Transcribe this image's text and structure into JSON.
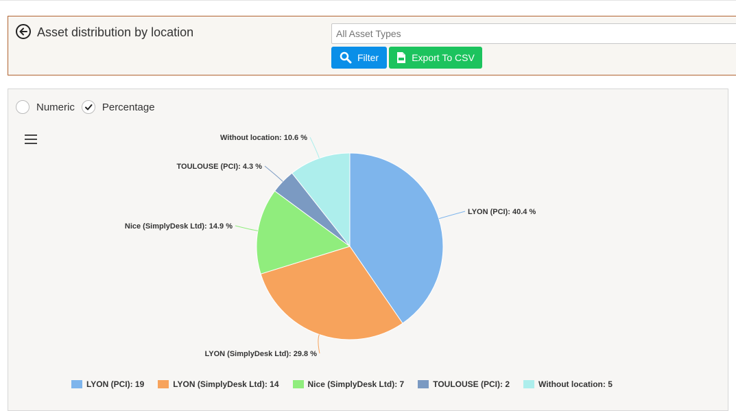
{
  "header": {
    "title": "Asset distribution by location",
    "asset_type_placeholder": "All Asset Types",
    "filter_label": "Filter",
    "export_label": "Export To CSV",
    "back_icon": "arrow-left-circle-icon",
    "filter_icon": "search-icon",
    "export_icon": "csv-file-icon"
  },
  "mode": {
    "numeric_label": "Numeric",
    "percentage_label": "Percentage",
    "selected": "percentage"
  },
  "chart_data": {
    "type": "pie",
    "series": [
      {
        "name": "LYON (PCI)",
        "value": 19,
        "percent": 40.4,
        "color": "#7eb5ec",
        "label": "LYON (PCI): 40.4 %",
        "legend": "LYON (PCI): 19"
      },
      {
        "name": "LYON (SimplyDesk Ltd)",
        "value": 14,
        "percent": 29.8,
        "color": "#f7a35c",
        "label": "LYON (SimplyDesk Ltd): 29.8 %",
        "legend": "LYON (SimplyDesk Ltd): 14"
      },
      {
        "name": "Nice (SimplyDesk Ltd)",
        "value": 7,
        "percent": 14.9,
        "color": "#90ed7d",
        "label": "Nice (SimplyDesk Ltd): 14.9 %",
        "legend": "Nice (SimplyDesk Ltd): 7"
      },
      {
        "name": "TOULOUSE (PCI)",
        "value": 2,
        "percent": 4.3,
        "color": "#7b9ac2",
        "label": "TOULOUSE (PCI): 4.3 %",
        "legend": "TOULOUSE (PCI): 2"
      },
      {
        "name": "Without location",
        "value": 5,
        "percent": 10.6,
        "color": "#adeeec",
        "label": "Without location: 10.6 %",
        "legend": "Without location: 5"
      }
    ],
    "legend_position": "bottom"
  }
}
